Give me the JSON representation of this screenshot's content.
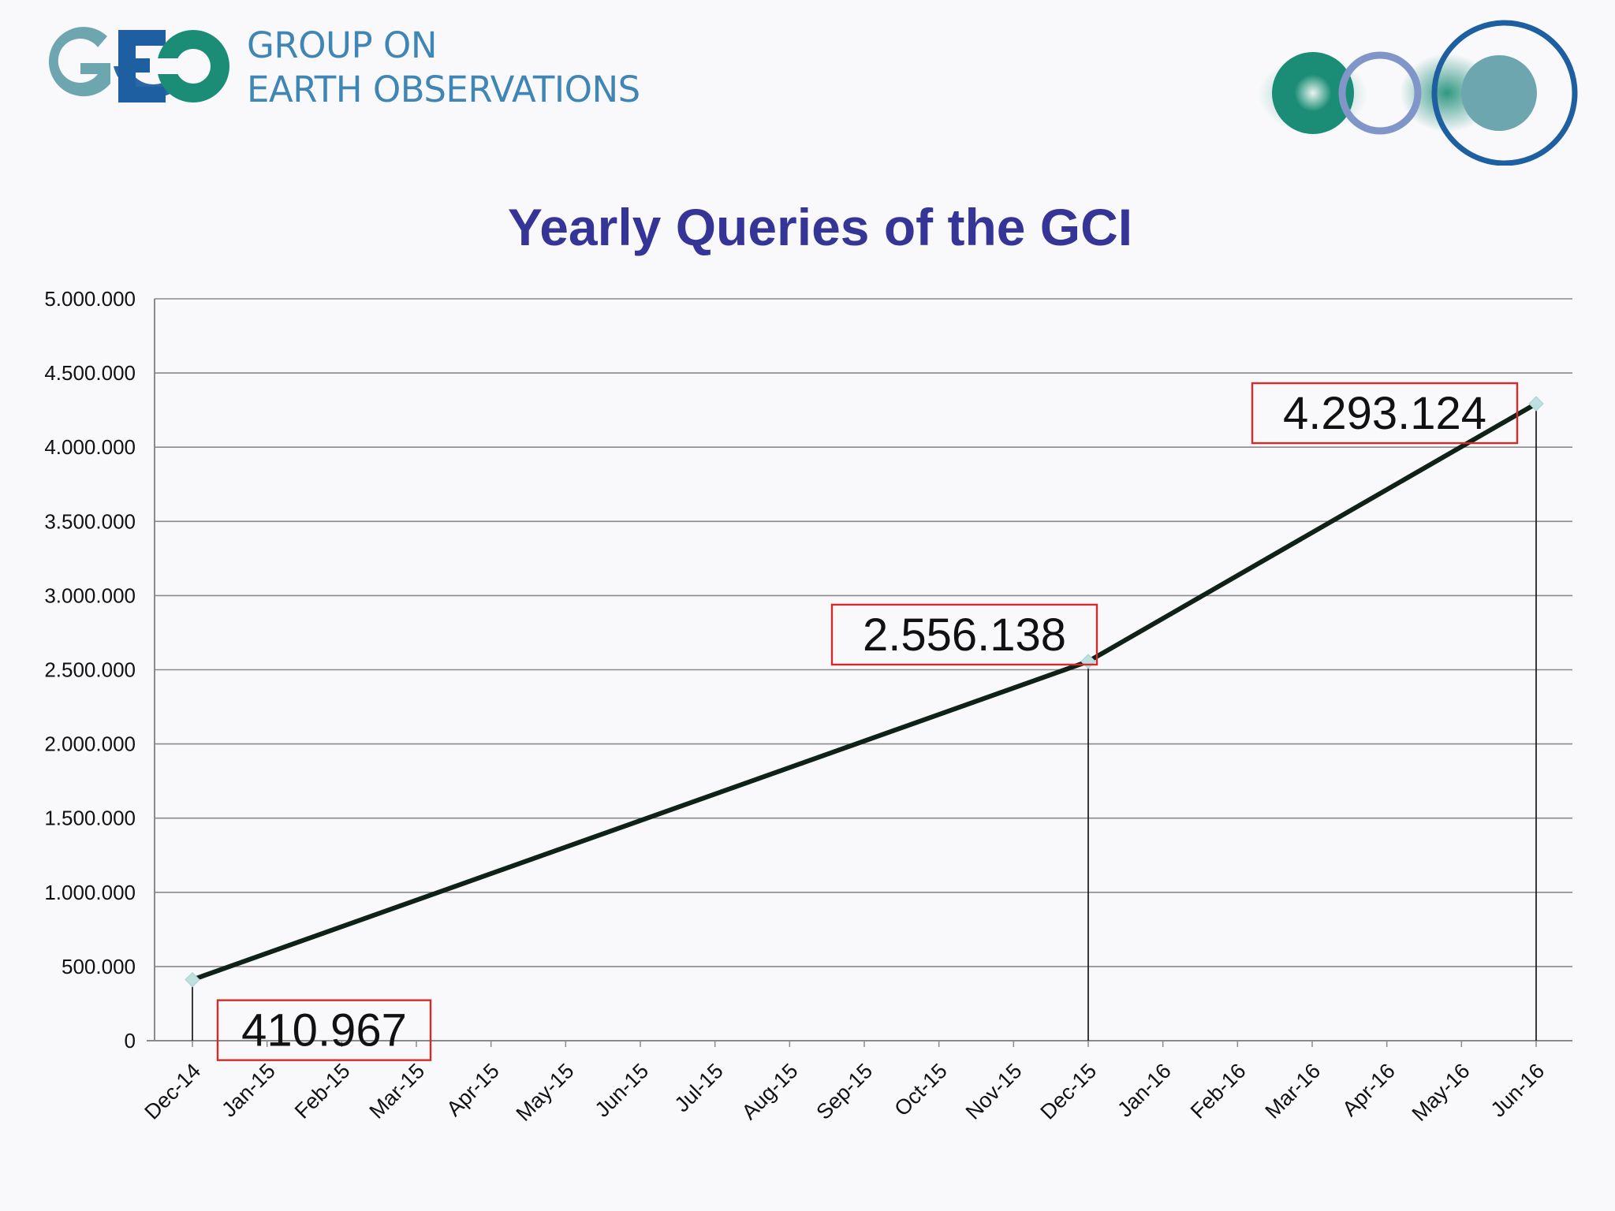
{
  "header": {
    "org_line1": "GROUP ON",
    "org_line2": "EARTH OBSERVATIONS",
    "logo_text": "GEO"
  },
  "colors": {
    "brand_teal": "#1b8d76",
    "brand_blue": "#1d5fa0",
    "brand_gray_teal": "#6ea6b0",
    "title": "#353497",
    "line": "#0f2218",
    "callout_border": "#d42a2a",
    "marker": "#bfe0e0"
  },
  "chart_data": {
    "type": "line",
    "title": "Yearly Queries of the GCI",
    "categories": [
      "Dec-14",
      "Jan-15",
      "Feb-15",
      "Mar-15",
      "Apr-15",
      "May-15",
      "Jun-15",
      "Jul-15",
      "Aug-15",
      "Sep-15",
      "Oct-15",
      "Nov-15",
      "Dec-15",
      "Jan-16",
      "Feb-16",
      "Mar-16",
      "Apr-16",
      "May-16",
      "Jun-16"
    ],
    "series": [
      {
        "points": [
          {
            "x": "Dec-14",
            "y": 410967,
            "label": "410.967"
          },
          {
            "x": "Dec-15",
            "y": 2556138,
            "label": "2.556.138"
          },
          {
            "x": "Jun-16",
            "y": 4293124,
            "label": "4.293.124"
          }
        ]
      }
    ],
    "ylim": [
      0,
      5000000
    ],
    "yticks": [
      {
        "value": 0,
        "label": "0"
      },
      {
        "value": 500000,
        "label": "500.000"
      },
      {
        "value": 1000000,
        "label": "1.000.000"
      },
      {
        "value": 1500000,
        "label": "1.500.000"
      },
      {
        "value": 2000000,
        "label": "2.000.000"
      },
      {
        "value": 2500000,
        "label": "2.500.000"
      },
      {
        "value": 3000000,
        "label": "3.000.000"
      },
      {
        "value": 3500000,
        "label": "3.500.000"
      },
      {
        "value": 4000000,
        "label": "4.000.000"
      },
      {
        "value": 4500000,
        "label": "4.500.000"
      },
      {
        "value": 5000000,
        "label": "5.000.000"
      }
    ],
    "grid": true,
    "drop_lines": true,
    "legend": "none"
  }
}
